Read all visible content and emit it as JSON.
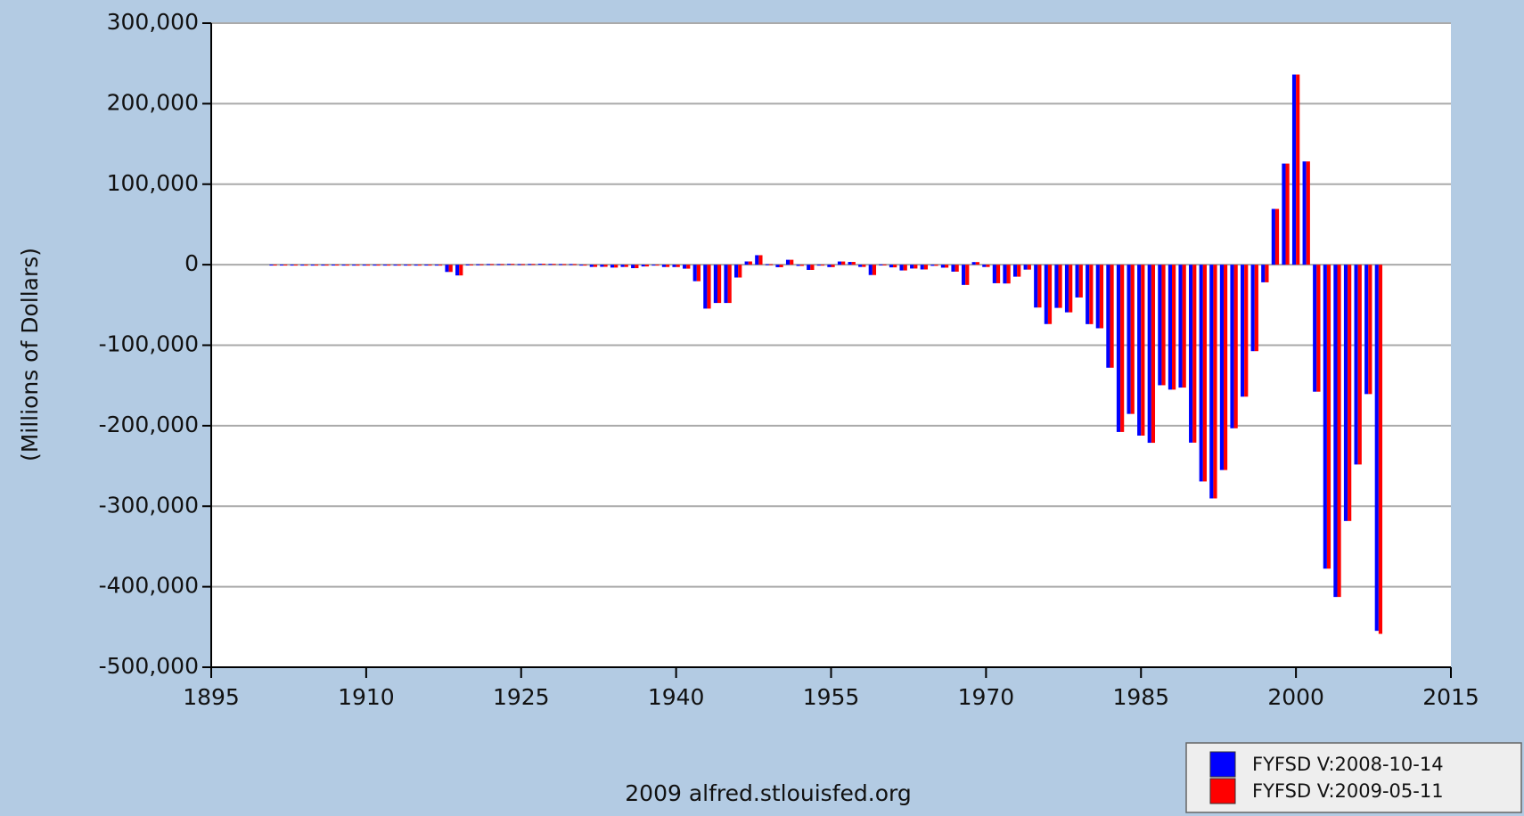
{
  "chart_data": {
    "type": "bar",
    "y_label": "(Millions of Dollars)",
    "footer": "2009 alfred.stlouisfed.org",
    "x": [
      1901,
      1902,
      1903,
      1904,
      1905,
      1906,
      1907,
      1908,
      1909,
      1910,
      1911,
      1912,
      1913,
      1914,
      1915,
      1916,
      1917,
      1918,
      1919,
      1920,
      1921,
      1922,
      1923,
      1924,
      1925,
      1926,
      1927,
      1928,
      1929,
      1930,
      1931,
      1932,
      1933,
      1934,
      1935,
      1936,
      1937,
      1938,
      1939,
      1940,
      1941,
      1942,
      1943,
      1944,
      1945,
      1946,
      1947,
      1948,
      1949,
      1950,
      1951,
      1952,
      1953,
      1954,
      1955,
      1956,
      1957,
      1958,
      1959,
      1960,
      1961,
      1962,
      1963,
      1964,
      1965,
      1966,
      1967,
      1968,
      1969,
      1970,
      1971,
      1972,
      1973,
      1974,
      1975,
      1976,
      1977,
      1978,
      1979,
      1980,
      1981,
      1982,
      1983,
      1984,
      1985,
      1986,
      1987,
      1988,
      1989,
      1990,
      1991,
      1992,
      1993,
      1994,
      1995,
      1996,
      1997,
      1998,
      1999,
      2000,
      2001,
      2002,
      2003,
      2004,
      2005,
      2006,
      2007,
      2008
    ],
    "series": [
      {
        "name": "FYFSD V:2008-10-14",
        "color": "#0000ff",
        "values": [
          63,
          77,
          45,
          -43,
          -23,
          25,
          87,
          -57,
          -89,
          -18,
          11,
          3,
          0,
          0,
          -63,
          48,
          -853,
          -9032,
          -13363,
          291,
          509,
          736,
          713,
          963,
          717,
          865,
          1155,
          939,
          734,
          738,
          -462,
          -2735,
          -2602,
          -3586,
          -2803,
          -4304,
          -2193,
          -89,
          -2846,
          -2920,
          -4941,
          -20503,
          -54554,
          -47557,
          -47553,
          -15936,
          4018,
          11796,
          580,
          -3119,
          6102,
          -1519,
          -6493,
          -1154,
          -2993,
          3947,
          3412,
          -2769,
          -12849,
          301,
          -3335,
          -7146,
          -4756,
          -5915,
          -1411,
          -3698,
          -8643,
          -25161,
          3242,
          -2842,
          -23033,
          -23373,
          -14908,
          -6135,
          -53242,
          -73732,
          -53659,
          -59185,
          -40726,
          -73830,
          -78968,
          -127977,
          -207802,
          -185367,
          -212308,
          -221227,
          -149730,
          -155178,
          -152639,
          -221036,
          -269238,
          -290321,
          -255051,
          -203186,
          -163952,
          -107431,
          -21884,
          69270,
          125610,
          236241,
          128236,
          -157758,
          -377585,
          -412727,
          -318346,
          -248181,
          -160701,
          -454798
        ]
      },
      {
        "name": "FYFSD V:2009-05-11",
        "color": "#ff0000",
        "values": [
          63,
          77,
          45,
          -43,
          -23,
          25,
          87,
          -57,
          -89,
          -18,
          11,
          3,
          0,
          0,
          -63,
          48,
          -853,
          -9032,
          -13363,
          291,
          509,
          736,
          713,
          963,
          717,
          865,
          1155,
          939,
          734,
          738,
          -462,
          -2735,
          -2602,
          -3586,
          -2803,
          -4304,
          -2193,
          -89,
          -2846,
          -2920,
          -4941,
          -20503,
          -54554,
          -47557,
          -47553,
          -15936,
          4018,
          11796,
          580,
          -3119,
          6102,
          -1519,
          -6493,
          -1154,
          -2993,
          3947,
          3412,
          -2769,
          -12849,
          301,
          -3335,
          -7146,
          -4756,
          -5915,
          -1411,
          -3698,
          -8643,
          -25161,
          3242,
          -2842,
          -23033,
          -23373,
          -14908,
          -6135,
          -53242,
          -73732,
          -53659,
          -59185,
          -40726,
          -73830,
          -78968,
          -127977,
          -207802,
          -185367,
          -212308,
          -221227,
          -149730,
          -155178,
          -152639,
          -221036,
          -269238,
          -290321,
          -255051,
          -203186,
          -163952,
          -107431,
          -21884,
          69270,
          125610,
          236241,
          128236,
          -157758,
          -377585,
          -412727,
          -318346,
          -248181,
          -160701,
          -458555
        ]
      }
    ],
    "xlim": [
      1895,
      2015
    ],
    "xticks": [
      1895,
      1910,
      1925,
      1940,
      1955,
      1970,
      1985,
      2000,
      2015
    ],
    "ylim": [
      -500000,
      300000
    ],
    "yticks": [
      {
        "value": -500000,
        "label": "-500,000"
      },
      {
        "value": -400000,
        "label": "-400,000"
      },
      {
        "value": -300000,
        "label": "-300,000"
      },
      {
        "value": -200000,
        "label": "-200,000"
      },
      {
        "value": -100000,
        "label": "-100,000"
      },
      0,
      {
        "value": 100000,
        "label": "100,000"
      },
      {
        "value": 200000,
        "label": "200,000"
      },
      {
        "value": 300000,
        "label": "300,000"
      }
    ],
    "grid": true,
    "legend": "bottom-right"
  }
}
